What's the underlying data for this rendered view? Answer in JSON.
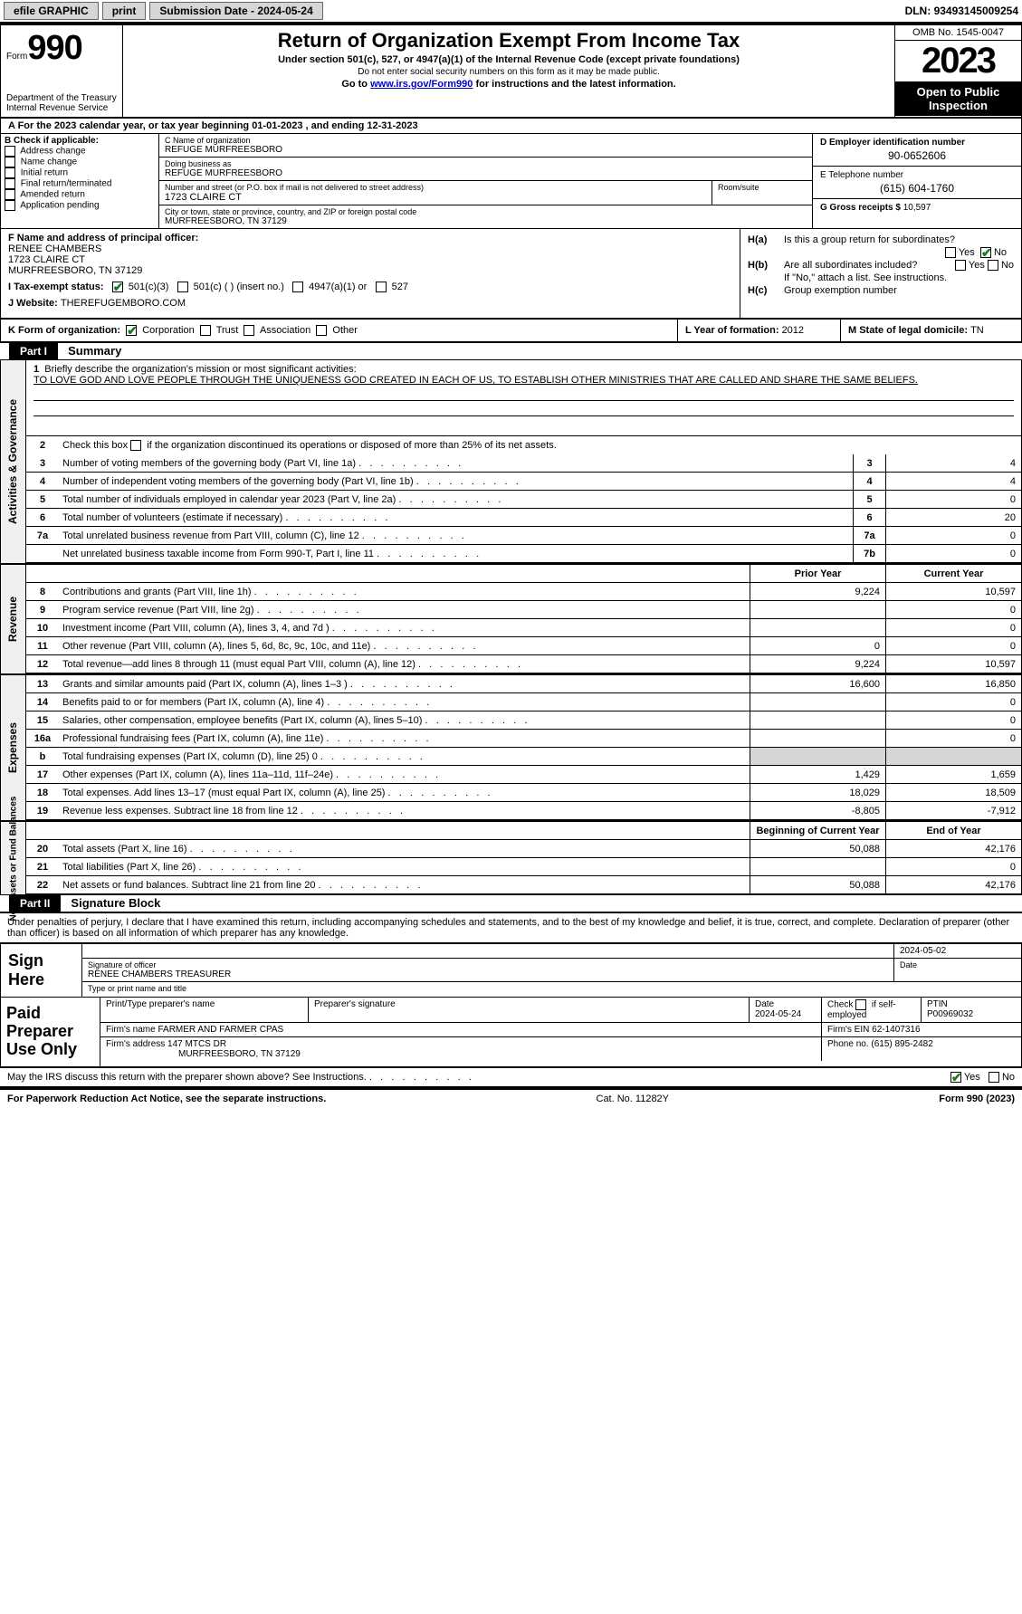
{
  "topbar": {
    "efile": "efile GRAPHIC",
    "print": "print",
    "sub_label": "Submission Date - ",
    "sub_date": "2024-05-24",
    "dln_label": "DLN: ",
    "dln": "93493145009254"
  },
  "header": {
    "form_word": "Form",
    "form_no": "990",
    "dept": "Department of the Treasury Internal Revenue Service",
    "title": "Return of Organization Exempt From Income Tax",
    "sub": "Under section 501(c), 527, or 4947(a)(1) of the Internal Revenue Code (except private foundations)",
    "sub2": "Do not enter social security numbers on this form as it may be made public.",
    "link_pre": "Go to ",
    "link": "www.irs.gov/Form990",
    "link_post": " for instructions and the latest information.",
    "omb": "OMB No. 1545-0047",
    "year": "2023",
    "open": "Open to Public Inspection"
  },
  "line_a": "A   For the 2023 calendar year, or tax year beginning 01-01-2023    , and ending 12-31-2023",
  "box_b": {
    "label": "B Check if applicable:",
    "addr": "Address change",
    "name": "Name change",
    "init": "Initial return",
    "final": "Final return/terminated",
    "amend": "Amended return",
    "app": "Application pending"
  },
  "box_c": {
    "c_label": "C Name of organization",
    "org": "REFUGE MURFREESBORO",
    "dba_label": "Doing business as",
    "dba": "REFUGE MURFREESBORO",
    "street_label": "Number and street (or P.O. box if mail is not delivered to street address)",
    "street": "1723 CLAIRE CT",
    "room_label": "Room/suite",
    "city_label": "City or town, state or province, country, and ZIP or foreign postal code",
    "city": "MURFREESBORO, TN  37129"
  },
  "box_de": {
    "d_label": "D Employer identification number",
    "ein": "90-0652606",
    "e_label": "E Telephone number",
    "phone": "(615) 604-1760",
    "g_label": "G Gross receipts $ ",
    "gross": "10,597"
  },
  "box_f": {
    "f_label": "F  Name and address of principal officer:",
    "officer": "RENEE CHAMBERS",
    "addr1": "1723 CLAIRE CT",
    "addr2": "MURFREESBORO, TN  37129",
    "i_label": "I   Tax-exempt status:",
    "i_501c3": "501(c)(3)",
    "i_501c": "501(c) (  ) (insert no.)",
    "i_4947": "4947(a)(1) or",
    "i_527": "527",
    "j_label": "J   Website: ",
    "website": "THEREFUGEMBORO.COM"
  },
  "box_h": {
    "ha_label": "H(a)",
    "ha_text": "Is this a group return for subordinates?",
    "yes": "Yes",
    "no": "No",
    "hb_label": "H(b)",
    "hb_text": "Are all subordinates included?",
    "hb_note": "If \"No,\" attach a list. See instructions.",
    "hc_label": "H(c)",
    "hc_text": "Group exemption number "
  },
  "klm": {
    "k_label": "K Form of organization:",
    "k_corp": "Corporation",
    "k_trust": "Trust",
    "k_assoc": "Association",
    "k_other": "Other",
    "l_label": "L Year of formation: ",
    "l_val": "2012",
    "m_label": "M State of legal domicile: ",
    "m_val": "TN"
  },
  "part1": {
    "hdr": "Part I",
    "title": "Summary"
  },
  "gov": {
    "vtab": "Activities & Governance",
    "l1": "Briefly describe the organization's mission or most significant activities:",
    "mission": "TO LOVE GOD AND LOVE PEOPLE THROUGH THE UNIQUENESS GOD CREATED IN EACH OF US, TO ESTABLISH OTHER MINISTRIES THAT ARE CALLED AND SHARE THE SAME BELIEFS.",
    "l2": "Check this box      if the organization discontinued its operations or disposed of more than 25% of its net assets.",
    "rows": [
      {
        "n": "3",
        "d": "Number of voting members of the governing body (Part VI, line 1a)",
        "r": "3",
        "v": "4"
      },
      {
        "n": "4",
        "d": "Number of independent voting members of the governing body (Part VI, line 1b)",
        "r": "4",
        "v": "4"
      },
      {
        "n": "5",
        "d": "Total number of individuals employed in calendar year 2023 (Part V, line 2a)",
        "r": "5",
        "v": "0"
      },
      {
        "n": "6",
        "d": "Total number of volunteers (estimate if necessary)",
        "r": "6",
        "v": "20"
      },
      {
        "n": "7a",
        "d": "Total unrelated business revenue from Part VIII, column (C), line 12",
        "r": "7a",
        "v": "0"
      },
      {
        "n": "",
        "d": "Net unrelated business taxable income from Form 990-T, Part I, line 11",
        "r": "7b",
        "v": "0"
      }
    ]
  },
  "rev": {
    "vtab": "Revenue",
    "hdr_prior": "Prior Year",
    "hdr_cur": "Current Year",
    "rows": [
      {
        "n": "8",
        "d": "Contributions and grants (Part VIII, line 1h)",
        "p": "9,224",
        "c": "10,597"
      },
      {
        "n": "9",
        "d": "Program service revenue (Part VIII, line 2g)",
        "p": "",
        "c": "0"
      },
      {
        "n": "10",
        "d": "Investment income (Part VIII, column (A), lines 3, 4, and 7d )",
        "p": "",
        "c": "0"
      },
      {
        "n": "11",
        "d": "Other revenue (Part VIII, column (A), lines 5, 6d, 8c, 9c, 10c, and 11e)",
        "p": "0",
        "c": "0"
      },
      {
        "n": "12",
        "d": "Total revenue—add lines 8 through 11 (must equal Part VIII, column (A), line 12)",
        "p": "9,224",
        "c": "10,597"
      }
    ]
  },
  "exp": {
    "vtab": "Expenses",
    "rows": [
      {
        "n": "13",
        "d": "Grants and similar amounts paid (Part IX, column (A), lines 1–3 )",
        "p": "16,600",
        "c": "16,850"
      },
      {
        "n": "14",
        "d": "Benefits paid to or for members (Part IX, column (A), line 4)",
        "p": "",
        "c": "0"
      },
      {
        "n": "15",
        "d": "Salaries, other compensation, employee benefits (Part IX, column (A), lines 5–10)",
        "p": "",
        "c": "0"
      },
      {
        "n": "16a",
        "d": "Professional fundraising fees (Part IX, column (A), line 11e)",
        "p": "",
        "c": "0"
      },
      {
        "n": "b",
        "d": "Total fundraising expenses (Part IX, column (D), line 25) 0",
        "p": "SHADE",
        "c": "SHADE"
      },
      {
        "n": "17",
        "d": "Other expenses (Part IX, column (A), lines 11a–11d, 11f–24e)",
        "p": "1,429",
        "c": "1,659"
      },
      {
        "n": "18",
        "d": "Total expenses. Add lines 13–17 (must equal Part IX, column (A), line 25)",
        "p": "18,029",
        "c": "18,509"
      },
      {
        "n": "19",
        "საზ": "",
        "d": "Revenue less expenses. Subtract line 18 from line 12",
        "p": "-8,805",
        "c": "-7,912"
      }
    ]
  },
  "net": {
    "vtab": "Net Assets or Fund Balances",
    "hdr_beg": "Beginning of Current Year",
    "hdr_end": "End of Year",
    "rows": [
      {
        "n": "20",
        "d": "Total assets (Part X, line 16)",
        "p": "50,088",
        "c": "42,176"
      },
      {
        "n": "21",
        "d": "Total liabilities (Part X, line 26)",
        "p": "",
        "c": "0"
      },
      {
        "n": "22",
        "d": "Net assets or fund balances. Subtract line 21 from line 20",
        "p": "50,088",
        "c": "42,176"
      }
    ]
  },
  "part2": {
    "hdr": "Part II",
    "title": "Signature Block",
    "text": "Under penalties of perjury, I declare that I have examined this return, including accompanying schedules and statements, and to the best of my knowledge and belief, it is true, correct, and complete. Declaration of preparer (other than officer) is based on all information of which preparer has any knowledge."
  },
  "sign": {
    "label": "Sign Here",
    "date": "2024-05-02",
    "sig_label": "Signature of officer",
    "name": "RENEE CHAMBERS  TREASURER",
    "type_label": "Type or print name and af title",
    "date_label": "Date"
  },
  "paid": {
    "label": "Paid Preparer Use Only",
    "pname_label": "Print/Type preparer's name",
    "psig_label": "Preparer's signature",
    "pdate_label": "Date",
    "pdate": "2024-05-24",
    "check_label": "Check     if self-employed",
    "ptin_label": "PTIN",
    "ptin": "P00969032",
    "firm_label": "Firm's name   ",
    "firm": "FARMER AND FARMER CPAS",
    "fein_label": "Firm's EIN  ",
    "fein": "62-1407316",
    "faddr_label": "Firm's address ",
    "faddr1": "147 MTCS DR",
    "faddr2": "MURFREESBORO, TN  37129",
    "fphone_label": "Phone no. ",
    "fphone": "(615) 895-2482"
  },
  "may": {
    "text": "May the IRS discuss this return with the preparer shown above? See Instructions.",
    "yes": "Yes",
    "no": "No"
  },
  "footer": {
    "l": "For Paperwork Reduction Act Notice, see the separate instructions.",
    "m": "Cat. No. 11282Y",
    "r": "Form 990 (2023)"
  }
}
